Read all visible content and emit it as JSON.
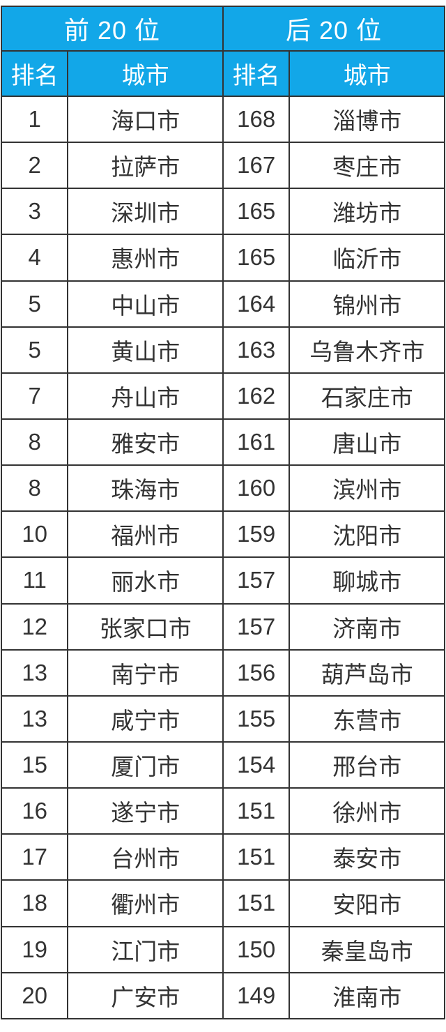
{
  "colors": {
    "header_bg": "#12a7e8",
    "header_text": "#ffffff",
    "border": "#333333",
    "cell_bg": "#ffffff",
    "cell_text": "#333333",
    "page_bg": "#ffffff"
  },
  "table": {
    "group_headers": [
      {
        "label": "前 20 位"
      },
      {
        "label": "后 20 位"
      }
    ],
    "column_headers": {
      "top_rank": "排名",
      "top_city": "城市",
      "bottom_rank": "排名",
      "bottom_city": "城市"
    },
    "rows": [
      {
        "top_rank": "1",
        "top_city": "海口市",
        "bottom_rank": "168",
        "bottom_city": "淄博市"
      },
      {
        "top_rank": "2",
        "top_city": "拉萨市",
        "bottom_rank": "167",
        "bottom_city": "枣庄市"
      },
      {
        "top_rank": "3",
        "top_city": "深圳市",
        "bottom_rank": "165",
        "bottom_city": "潍坊市"
      },
      {
        "top_rank": "4",
        "top_city": "惠州市",
        "bottom_rank": "165",
        "bottom_city": "临沂市"
      },
      {
        "top_rank": "5",
        "top_city": "中山市",
        "bottom_rank": "164",
        "bottom_city": "锦州市"
      },
      {
        "top_rank": "5",
        "top_city": "黄山市",
        "bottom_rank": "163",
        "bottom_city": "乌鲁木齐市"
      },
      {
        "top_rank": "7",
        "top_city": "舟山市",
        "bottom_rank": "162",
        "bottom_city": "石家庄市"
      },
      {
        "top_rank": "8",
        "top_city": "雅安市",
        "bottom_rank": "161",
        "bottom_city": "唐山市"
      },
      {
        "top_rank": "8",
        "top_city": "珠海市",
        "bottom_rank": "160",
        "bottom_city": "滨州市"
      },
      {
        "top_rank": "10",
        "top_city": "福州市",
        "bottom_rank": "159",
        "bottom_city": "沈阳市"
      },
      {
        "top_rank": "11",
        "top_city": "丽水市",
        "bottom_rank": "157",
        "bottom_city": "聊城市"
      },
      {
        "top_rank": "12",
        "top_city": "张家口市",
        "bottom_rank": "157",
        "bottom_city": "济南市"
      },
      {
        "top_rank": "13",
        "top_city": "南宁市",
        "bottom_rank": "156",
        "bottom_city": "葫芦岛市"
      },
      {
        "top_rank": "13",
        "top_city": "咸宁市",
        "bottom_rank": "155",
        "bottom_city": "东营市"
      },
      {
        "top_rank": "15",
        "top_city": "厦门市",
        "bottom_rank": "154",
        "bottom_city": "邢台市"
      },
      {
        "top_rank": "16",
        "top_city": "遂宁市",
        "bottom_rank": "151",
        "bottom_city": "徐州市"
      },
      {
        "top_rank": "17",
        "top_city": "台州市",
        "bottom_rank": "151",
        "bottom_city": "泰安市"
      },
      {
        "top_rank": "18",
        "top_city": "衢州市",
        "bottom_rank": "151",
        "bottom_city": "安阳市"
      },
      {
        "top_rank": "19",
        "top_city": "江门市",
        "bottom_rank": "150",
        "bottom_city": "秦皇岛市"
      },
      {
        "top_rank": "20",
        "top_city": "广安市",
        "bottom_rank": "149",
        "bottom_city": "淮南市"
      }
    ]
  },
  "chart_data": {
    "type": "table",
    "title": "",
    "groups": [
      "前 20 位",
      "后 20 位"
    ],
    "columns": [
      "排名",
      "城市",
      "排名",
      "城市"
    ],
    "top20": [
      [
        1,
        "海口市"
      ],
      [
        2,
        "拉萨市"
      ],
      [
        3,
        "深圳市"
      ],
      [
        4,
        "惠州市"
      ],
      [
        5,
        "中山市"
      ],
      [
        5,
        "黄山市"
      ],
      [
        7,
        "舟山市"
      ],
      [
        8,
        "雅安市"
      ],
      [
        8,
        "珠海市"
      ],
      [
        10,
        "福州市"
      ],
      [
        11,
        "丽水市"
      ],
      [
        12,
        "张家口市"
      ],
      [
        13,
        "南宁市"
      ],
      [
        13,
        "咸宁市"
      ],
      [
        15,
        "厦门市"
      ],
      [
        16,
        "遂宁市"
      ],
      [
        17,
        "台州市"
      ],
      [
        18,
        "衢州市"
      ],
      [
        19,
        "江门市"
      ],
      [
        20,
        "广安市"
      ]
    ],
    "bottom20": [
      [
        168,
        "淄博市"
      ],
      [
        167,
        "枣庄市"
      ],
      [
        165,
        "潍坊市"
      ],
      [
        165,
        "临沂市"
      ],
      [
        164,
        "锦州市"
      ],
      [
        163,
        "乌鲁木齐市"
      ],
      [
        162,
        "石家庄市"
      ],
      [
        161,
        "唐山市"
      ],
      [
        160,
        "滨州市"
      ],
      [
        159,
        "沈阳市"
      ],
      [
        157,
        "聊城市"
      ],
      [
        157,
        "济南市"
      ],
      [
        156,
        "葫芦岛市"
      ],
      [
        155,
        "东营市"
      ],
      [
        154,
        "邢台市"
      ],
      [
        151,
        "徐州市"
      ],
      [
        151,
        "泰安市"
      ],
      [
        151,
        "安阳市"
      ],
      [
        150,
        "秦皇岛市"
      ],
      [
        149,
        "淮南市"
      ]
    ]
  }
}
